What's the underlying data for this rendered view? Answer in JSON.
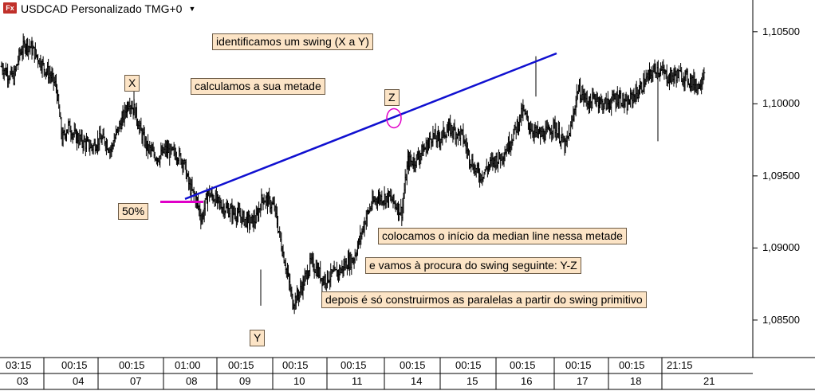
{
  "header": {
    "logo": "Fx",
    "title": "USDCAD Personalizado TMG+0",
    "dropdown_icon": "caret-down-icon"
  },
  "annotations": {
    "note1": "identificamos um swing (X a Y)",
    "note2": "calculamos a sua metade",
    "note3": "colocamos o início da median line nessa metade",
    "note4": "e vamos à procura do swing seguinte: Y-Z",
    "note5": "depois é só construirmos as paralelas a partir do swing primitivo",
    "label_x": "X",
    "label_y": "Y",
    "label_z": "Z",
    "label_50": "50%"
  },
  "colors": {
    "candles": "#000000",
    "median_line": "#1010d0",
    "half_marker": "#e000c8",
    "circle": "#e000c8",
    "note_bg": "#fce4c6"
  },
  "chart_data": {
    "type": "bar",
    "symbol": "USDCAD",
    "y_ticks": [
      "1,10500",
      "1,10000",
      "1,09500",
      "1,09000",
      "1,08500"
    ],
    "y_tick_values": [
      1.105,
      1.1,
      1.095,
      1.09,
      1.085
    ],
    "ylim": [
      1.0824,
      1.1072
    ],
    "x_time_labels": [
      "03:15",
      "00:15",
      "00:15",
      "01:00",
      "00:15",
      "00:15",
      "00:15",
      "00:15",
      "00:15",
      "00:15",
      "00:15",
      "00:15",
      "21:15"
    ],
    "x_day_labels": [
      "03",
      "04",
      "07",
      "08",
      "09",
      "10",
      "11",
      "14",
      "15",
      "16",
      "17",
      "18",
      "21"
    ],
    "key_points": [
      {
        "name": "X",
        "price": 1.1007
      },
      {
        "name": "Y",
        "price": 1.086
      },
      {
        "name": "Z",
        "price": 1.099
      },
      {
        "name": "50%",
        "price": 1.0932
      }
    ],
    "median_line": {
      "start_price": 1.0934,
      "end_price": 1.1035
    },
    "series": [
      {
        "values": [
          1.1026,
          1.1021,
          1.1018,
          1.1035,
          1.1042,
          1.1038,
          1.1032,
          1.1025,
          1.102,
          1.1012,
          1.0975,
          1.0985,
          1.0978,
          1.0975,
          1.0972,
          1.097,
          1.0975,
          1.0975,
          1.0968,
          1.098,
          1.099,
          1.1002,
          1.0995,
          1.098,
          1.097,
          1.0965,
          1.0963,
          1.0968,
          1.0966,
          1.0965,
          1.096,
          1.0942,
          1.0935,
          1.092,
          1.0938,
          1.0935,
          1.093,
          1.0927,
          1.0925,
          1.0923,
          1.092,
          1.0918,
          1.092,
          1.0935,
          1.0932,
          1.0928,
          1.0905,
          1.0885,
          1.0862,
          1.0868,
          1.0878,
          1.089,
          1.0885,
          1.0878,
          1.088,
          1.0882,
          1.0885,
          1.089,
          1.0892,
          1.0905,
          1.092,
          1.093,
          1.0935,
          1.0935,
          1.0935,
          1.093,
          1.0925,
          1.096,
          1.096,
          1.0965,
          1.097,
          1.0978,
          1.0975,
          1.098,
          1.0983,
          1.098,
          1.0978,
          1.0965,
          1.0955,
          1.095,
          1.0955,
          1.096,
          1.0962,
          1.0967,
          1.0975,
          1.0985,
          1.0995,
          1.0985,
          1.098,
          1.0978,
          1.098,
          1.0985,
          1.0978,
          1.097,
          1.0985,
          1.101,
          1.1005,
          1.1,
          1.1005,
          1.1,
          1.1,
          1.1003,
          1.1005,
          1.0998,
          1.1005,
          1.1008,
          1.1015,
          1.102,
          1.1025,
          1.1022,
          1.1018,
          1.102,
          1.102,
          1.1018,
          1.1015,
          1.1012,
          1.1025
        ]
      }
    ]
  }
}
